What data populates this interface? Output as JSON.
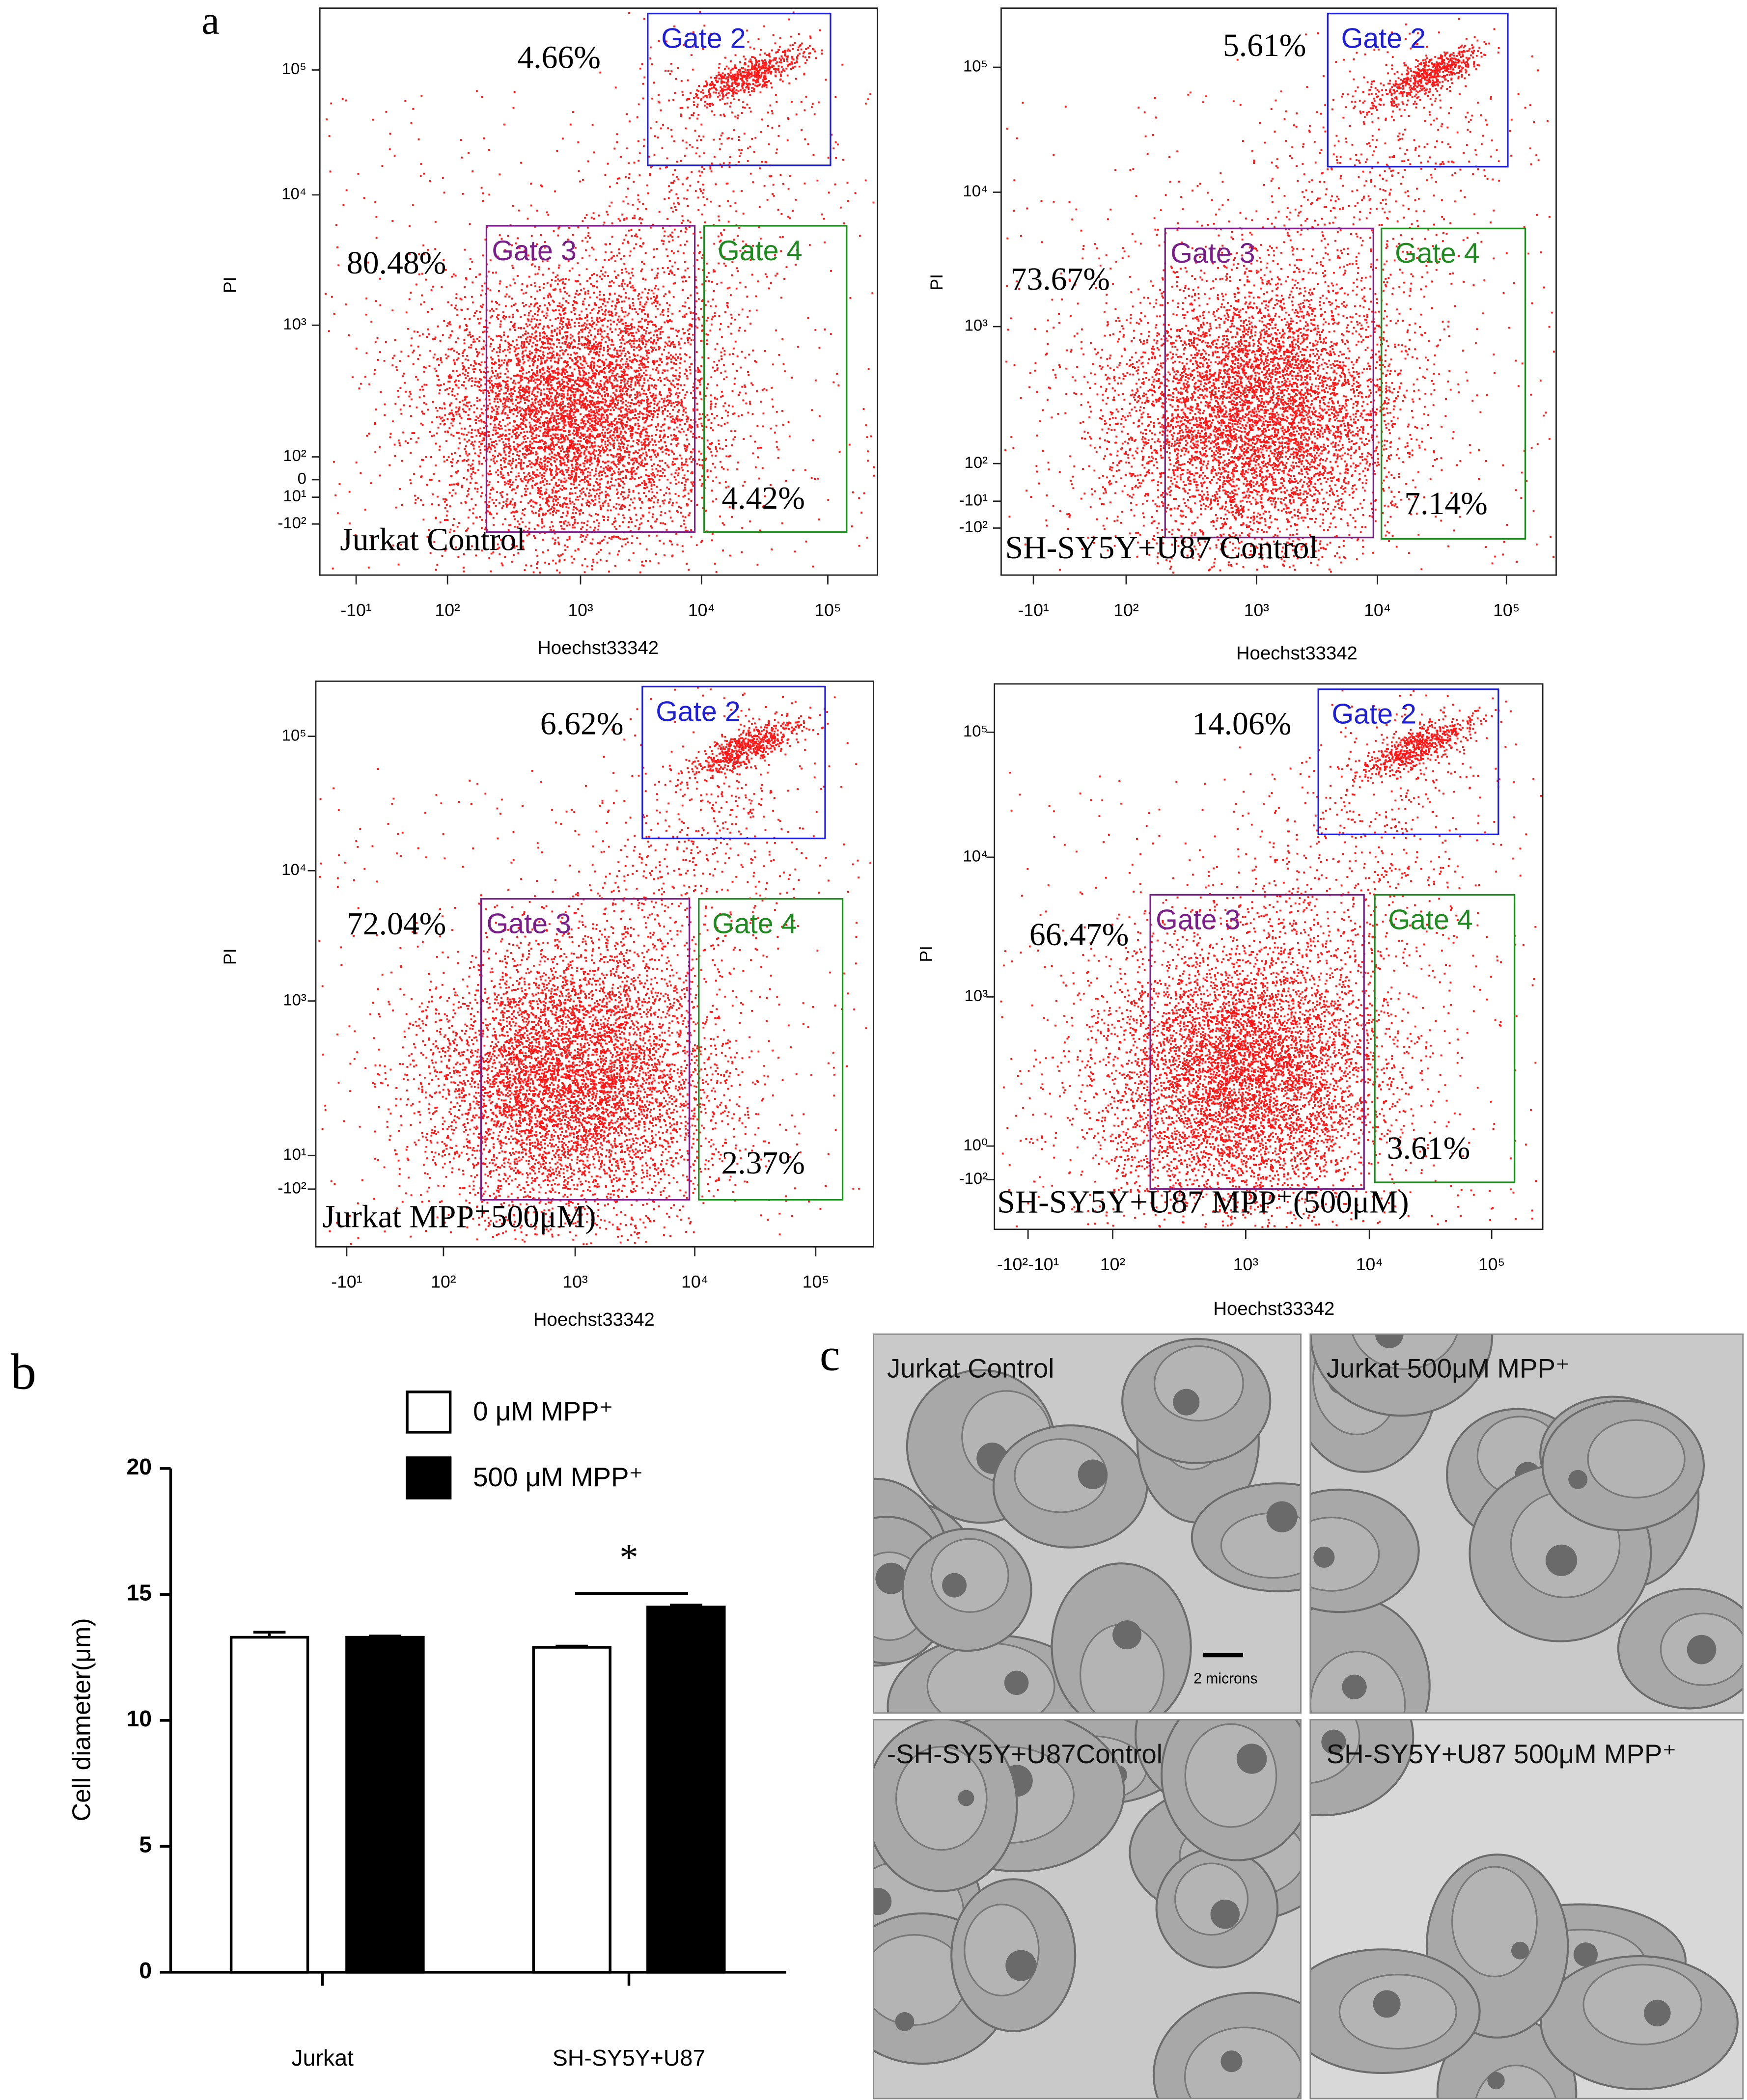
{
  "panel_a": {
    "label": "a",
    "plots": [
      {
        "title": "Jurkat Control",
        "ylabel": "PI",
        "xlabel": "Hoechst33342",
        "yticks": [
          "10⁵",
          "10⁴",
          "10³",
          "10²",
          "0",
          "10¹",
          "-10²"
        ],
        "xticks": [
          "-10¹",
          "10²",
          "10³",
          "10⁴",
          "10⁵"
        ],
        "gates": [
          "Gate 2",
          "Gate 3",
          "Gate 4"
        ],
        "percentages": [
          "4.66%",
          "80.48%",
          "4.42%"
        ]
      },
      {
        "title": "SH-SY5Y+U87 Control",
        "ylabel": "PI",
        "xlabel": "Hoechst33342",
        "yticks": [
          "10⁵",
          "10⁴",
          "10³",
          "10²",
          "-10¹",
          "-10²"
        ],
        "xticks": [
          "-10¹",
          "10²",
          "10³",
          "10⁴",
          "10⁵"
        ],
        "gates": [
          "Gate 2",
          "Gate 3",
          "Gate 4"
        ],
        "percentages": [
          "5.61%",
          "73.67%",
          "7.14%"
        ]
      },
      {
        "title": "Jurkat MPP⁺500μM)",
        "ylabel": "PI",
        "xlabel": "Hoechst33342",
        "yticks": [
          "10⁵",
          "10⁴",
          "10³",
          "10¹",
          "-10²"
        ],
        "xticks": [
          "-10¹",
          "10²",
          "10³",
          "10⁴",
          "10⁵"
        ],
        "gates": [
          "Gate 2",
          "Gate 3",
          "Gate 4"
        ],
        "percentages": [
          "6.62%",
          "72.04%",
          "2.37%"
        ]
      },
      {
        "title": "SH-SY5Y+U87 MPP⁺(500μM)",
        "ylabel": "PI",
        "xlabel": "Hoechst33342",
        "yticks": [
          "10⁵",
          "10⁴",
          "10³",
          "10⁰",
          "-10²"
        ],
        "xticks": [
          "-10²-10¹",
          "10²",
          "10³",
          "10⁴",
          "10⁵"
        ],
        "gates": [
          "Gate 2",
          "Gate 3",
          "Gate 4"
        ],
        "percentages": [
          "14.06%",
          "66.47%",
          "3.61%"
        ]
      }
    ]
  },
  "chart_data": {
    "type": "bar",
    "panel_label": "b",
    "ylabel": "Cell diameter(μm)",
    "categories": [
      "Jurkat",
      "SH-SY5Y+U87"
    ],
    "series": [
      {
        "name": "0 μM MPP⁺",
        "color": "#ffffff",
        "values": [
          13.3,
          12.9
        ],
        "errors": [
          0.2,
          0.05
        ]
      },
      {
        "name": "500  μM MPP⁺",
        "color": "#000000",
        "values": [
          13.3,
          14.5
        ],
        "errors": [
          0.05,
          0.08
        ]
      }
    ],
    "ylim": [
      0,
      20
    ],
    "yticks": [
      0,
      5,
      10,
      15,
      20
    ],
    "annotation": "*",
    "legend": "top"
  },
  "panel_c": {
    "label": "c",
    "images": [
      "Jurkat Control",
      "Jurkat 500μM MPP⁺",
      "-SH-SY5Y+U87Control",
      "SH-SY5Y+U87 500μM MPP⁺"
    ],
    "scale_bar": "2 microns"
  }
}
